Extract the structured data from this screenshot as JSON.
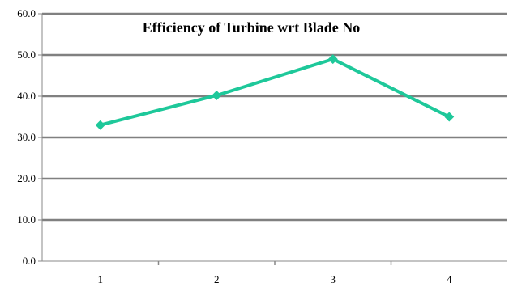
{
  "chart_data": {
    "type": "line",
    "title": "Efficiency of Turbine wrt Blade No",
    "xlabel": "",
    "ylabel": "",
    "categories": [
      "1",
      "2",
      "3",
      "4"
    ],
    "series": [
      {
        "values": [
          33.0,
          40.2,
          49.0,
          35.0
        ],
        "color": "#1ec89a",
        "marker": "diamond"
      }
    ],
    "ylim": [
      0,
      60
    ],
    "yticks": [
      "0.0",
      "10.0",
      "20.0",
      "30.0",
      "40.0",
      "50.0",
      "60.0"
    ],
    "grid": true,
    "legend": "none"
  }
}
